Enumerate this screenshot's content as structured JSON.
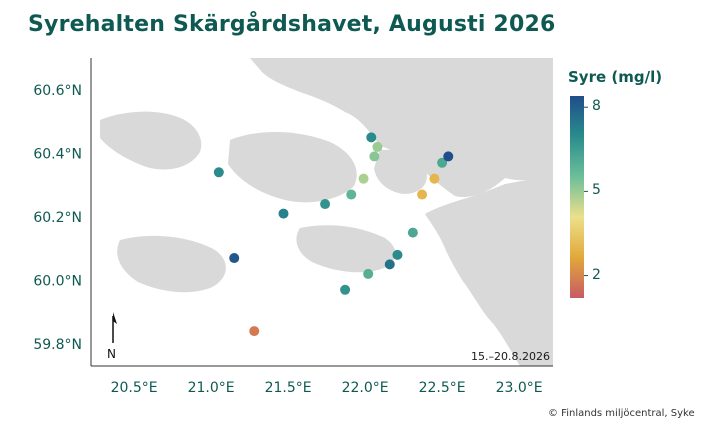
{
  "title": "Syrehalten Skärgårdshavet, Augusti 2026",
  "legend": {
    "title": "Syre (mg/l)",
    "ticks": [
      {
        "value": 8,
        "label": "8"
      },
      {
        "value": 5,
        "label": "5"
      },
      {
        "value": 2,
        "label": "2"
      }
    ],
    "min": 1.2,
    "max": 8.4,
    "colors": [
      "#c75a63",
      "#e2a83a",
      "#ece08a",
      "#6cbf9a",
      "#2a8c8c",
      "#1f4e8a"
    ]
  },
  "date_range": "15.–20.8.2026",
  "north_label": "N",
  "credit": "© Finlands miljöcentral, Syke",
  "axes": {
    "x_ticks": [
      {
        "value": 20.5,
        "label": "20.5°E"
      },
      {
        "value": 21.0,
        "label": "21.0°E"
      },
      {
        "value": 21.5,
        "label": "21.5°E"
      },
      {
        "value": 22.0,
        "label": "22.0°E"
      },
      {
        "value": 22.5,
        "label": "22.5°E"
      },
      {
        "value": 23.0,
        "label": "23.0°E"
      }
    ],
    "y_ticks": [
      {
        "value": 59.8,
        "label": "59.8°N"
      },
      {
        "value": 60.0,
        "label": "60.0°N"
      },
      {
        "value": 60.2,
        "label": "60.2°N"
      },
      {
        "value": 60.4,
        "label": "60.4°N"
      },
      {
        "value": 60.6,
        "label": "60.6°N"
      }
    ],
    "lon_range": [
      20.22,
      23.22
    ],
    "lat_range": [
      59.73,
      60.7
    ]
  },
  "chart_data": {
    "type": "scatter",
    "x_label": "",
    "y_label": "",
    "points": [
      {
        "lon": 21.05,
        "lat": 60.34,
        "oxygen": 7.0
      },
      {
        "lon": 21.15,
        "lat": 60.07,
        "oxygen": 8.2
      },
      {
        "lon": 21.28,
        "lat": 59.84,
        "oxygen": 1.8
      },
      {
        "lon": 21.47,
        "lat": 60.21,
        "oxygen": 7.2
      },
      {
        "lon": 21.74,
        "lat": 60.24,
        "oxygen": 6.8
      },
      {
        "lon": 21.87,
        "lat": 59.97,
        "oxygen": 6.8
      },
      {
        "lon": 21.91,
        "lat": 60.27,
        "oxygen": 5.8
      },
      {
        "lon": 21.99,
        "lat": 60.32,
        "oxygen": 4.8
      },
      {
        "lon": 22.02,
        "lat": 60.02,
        "oxygen": 6.0
      },
      {
        "lon": 22.04,
        "lat": 60.45,
        "oxygen": 7.0
      },
      {
        "lon": 22.06,
        "lat": 60.39,
        "oxygen": 5.2
      },
      {
        "lon": 22.08,
        "lat": 60.42,
        "oxygen": 5.0
      },
      {
        "lon": 22.16,
        "lat": 60.05,
        "oxygen": 7.6
      },
      {
        "lon": 22.21,
        "lat": 60.08,
        "oxygen": 7.0
      },
      {
        "lon": 22.31,
        "lat": 60.15,
        "oxygen": 6.2
      },
      {
        "lon": 22.37,
        "lat": 60.27,
        "oxygen": 3.0
      },
      {
        "lon": 22.45,
        "lat": 60.32,
        "oxygen": 3.0
      },
      {
        "lon": 22.5,
        "lat": 60.37,
        "oxygen": 6.2
      },
      {
        "lon": 22.54,
        "lat": 60.39,
        "oxygen": 8.4
      }
    ]
  }
}
